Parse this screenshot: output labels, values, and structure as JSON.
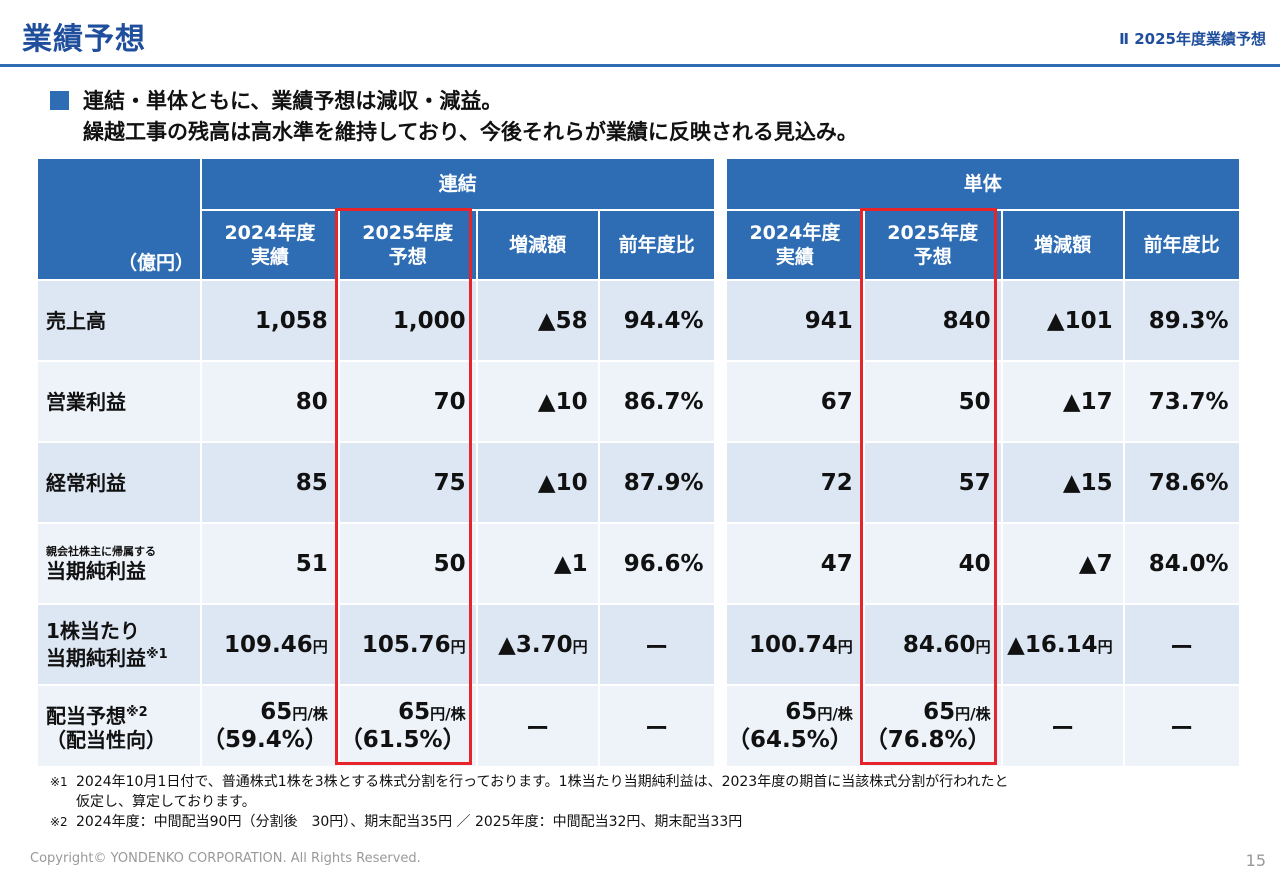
{
  "header": {
    "title": "業績予想",
    "section": "Ⅱ 2025年度業績予想"
  },
  "lead": {
    "line1": "連結・単体ともに、業績予想は減収・減益。",
    "line2": "繰越工事の残高は高水準を維持しており、今後それらが業績に反映される見込み。"
  },
  "table": {
    "unit": "（億円）",
    "groups": {
      "consolidated": "連結",
      "standalone": "単体"
    },
    "cols": {
      "actual_line1": "2024年度",
      "actual_line2": "実績",
      "forecast_line1": "2025年度",
      "forecast_line2": "予想",
      "change": "増減額",
      "ratio": "前年度比"
    },
    "rows": [
      {
        "label": "売上高",
        "c": {
          "a": "1,058",
          "f": "1,000",
          "d": "▲58",
          "r": "94.4%"
        },
        "s": {
          "a": "941",
          "f": "840",
          "d": "▲101",
          "r": "89.3%"
        }
      },
      {
        "label": "営業利益",
        "c": {
          "a": "80",
          "f": "70",
          "d": "▲10",
          "r": "86.7%"
        },
        "s": {
          "a": "67",
          "f": "50",
          "d": "▲17",
          "r": "73.7%"
        }
      },
      {
        "label": "経常利益",
        "c": {
          "a": "85",
          "f": "75",
          "d": "▲10",
          "r": "87.9%"
        },
        "s": {
          "a": "72",
          "f": "57",
          "d": "▲15",
          "r": "78.6%"
        }
      },
      {
        "label_small": "親会社株主に帰属する",
        "label": "当期純利益",
        "c": {
          "a": "51",
          "f": "50",
          "d": "▲1",
          "r": "96.6%"
        },
        "s": {
          "a": "47",
          "f": "40",
          "d": "▲7",
          "r": "84.0%"
        }
      }
    ],
    "eps": {
      "label1": "1株当たり",
      "label2": "当期純利益",
      "note": "※1",
      "yen": "円",
      "c": {
        "a": "109.46",
        "f": "105.76",
        "d": "▲3.70",
        "r": "ー"
      },
      "s": {
        "a": "100.74",
        "f": "84.60",
        "d": "▲16.14",
        "r": "ー"
      }
    },
    "div": {
      "label1": "配当予想",
      "label2": "（配当性向）",
      "note": "※2",
      "unit": "円/株",
      "c": {
        "a": "65",
        "a_ratio": "（59.4%）",
        "f": "65",
        "f_ratio": "（61.5%）",
        "d": "ー",
        "r": "ー"
      },
      "s": {
        "a": "65",
        "a_ratio": "（64.5%）",
        "f": "65",
        "f_ratio": "（76.8%）",
        "d": "ー",
        "r": "ー"
      }
    }
  },
  "notes": {
    "n1_mark": "※1",
    "n1_line1": "2024年10月1日付で、普通株式1株を3株とする株式分割を行っております。1株当たり当期純利益は、2023年度の期首に当該株式分割が行われたと",
    "n1_line2": "仮定し、算定しております。",
    "n2_mark": "※2",
    "n2_line1": "2024年度：中間配当90円（分割後　30円）、期末配当35円 ／ 2025年度：中間配当32円、期末配当33円"
  },
  "footer": {
    "copyright": "Copyright© YONDENKO CORPORATION. All Rights Reserved.",
    "page": "15"
  },
  "colors": {
    "brand": "#1f4e9c",
    "header_fill": "#2e6db4",
    "row_fill": "#dde7f3",
    "row_alt": "#eef3f9",
    "highlight": "#e8242b"
  }
}
